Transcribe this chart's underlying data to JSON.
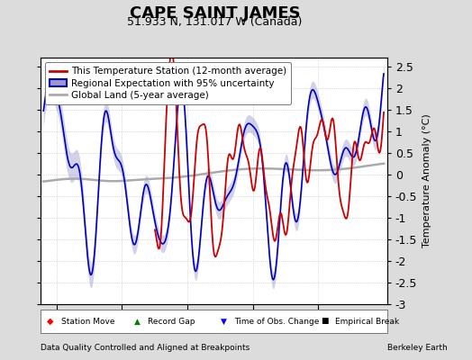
{
  "title": "CAPE SAINT JAMES",
  "subtitle": "51.933 N, 131.017 W (Canada)",
  "ylabel": "Temperature Anomaly (°C)",
  "xlabel_left": "Data Quality Controlled and Aligned at Breakpoints",
  "xlabel_right": "Berkeley Earth",
  "ylim": [
    -3.0,
    2.7
  ],
  "xlim": [
    1937.5,
    1990.5
  ],
  "yticks": [
    -3,
    -2.5,
    -2,
    -1.5,
    -1,
    -0.5,
    0,
    0.5,
    1,
    1.5,
    2,
    2.5
  ],
  "xticks": [
    1940,
    1950,
    1960,
    1970,
    1980
  ],
  "bg_color": "#dcdcdc",
  "plot_bg_color": "#ffffff",
  "grid_color": "#bbbbbb",
  "red_color": "#cc0000",
  "blue_color": "#0000bb",
  "blue_fill_color": "#9999cc",
  "gray_color": "#aaaaaa",
  "title_fontsize": 13,
  "subtitle_fontsize": 9,
  "tick_fontsize": 9,
  "legend_fontsize": 7.5,
  "ylabel_fontsize": 8
}
